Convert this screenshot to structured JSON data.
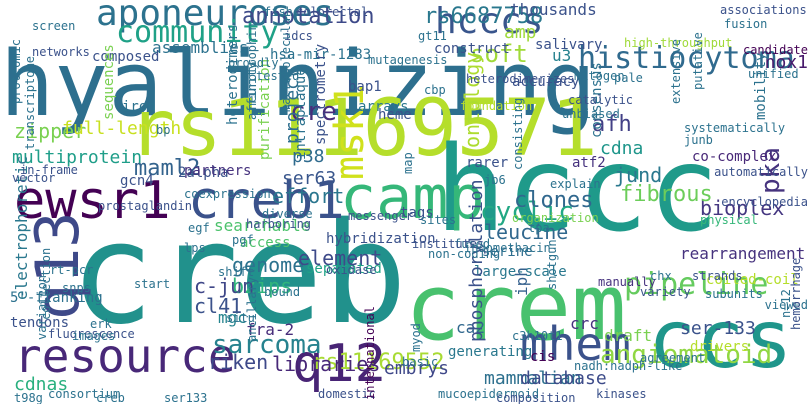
{
  "words": [
    {
      "text": "hyalinizing",
      "color": "#2d6f8e"
    },
    {
      "text": "creb",
      "color": "#21918c"
    },
    {
      "text": "rs11169571",
      "color": "#b5de2b"
    },
    {
      "text": "hccc",
      "color": "#1f9a8a"
    },
    {
      "text": "crem",
      "color": "#48c16e"
    },
    {
      "text": "ccs",
      "color": "#1f968b"
    },
    {
      "text": "camp",
      "color": "#35b779"
    },
    {
      "text": "ewsr1",
      "color": "#440154"
    },
    {
      "text": "creb1",
      "color": "#3b528b"
    },
    {
      "text": "resource",
      "color": "#482878"
    },
    {
      "text": "q13",
      "color": "#3e4989"
    },
    {
      "text": "q12",
      "color": "#482475"
    },
    {
      "text": "mhem",
      "color": "#3b528b"
    },
    {
      "text": "aponeuroses",
      "color": "#2c728e"
    },
    {
      "text": "community",
      "color": "#1fa187"
    },
    {
      "text": "hcccs",
      "color": "#39558c"
    },
    {
      "text": "histiocytoma",
      "color": "#306a8e"
    },
    {
      "text": "rs6687758",
      "color": "#2a788e"
    },
    {
      "text": "annotation",
      "color": "#3e4a89"
    },
    {
      "text": "soft",
      "color": "#a0da39"
    },
    {
      "text": "cre",
      "color": "#472d7b"
    },
    {
      "text": "pipeline",
      "color": "#65cb5e"
    },
    {
      "text": "cyclic",
      "color": "#22a884"
    },
    {
      "text": "leucine",
      "color": "#31688e"
    },
    {
      "text": "msk1",
      "color": "#d0e11c"
    },
    {
      "text": "sarcoma",
      "color": "#26828e"
    },
    {
      "text": "angiomatoid",
      "color": "#90d743"
    },
    {
      "text": "rs11169552",
      "color": "#a8db34"
    },
    {
      "text": "maml2",
      "color": "#33638d"
    },
    {
      "text": "multiprotein",
      "color": "#1f9e89"
    },
    {
      "text": "bioplex",
      "color": "#453781"
    },
    {
      "text": "pka",
      "color": "#46337e"
    },
    {
      "text": "afh",
      "color": "#424086"
    },
    {
      "text": "nox1",
      "color": "#481a6c"
    },
    {
      "text": "ontology",
      "color": "#addc30"
    },
    {
      "text": "zipper",
      "color": "#7ad151"
    },
    {
      "text": "full-length",
      "color": "#c8e020"
    },
    {
      "text": "p38",
      "color": "#2f6b8e"
    },
    {
      "text": "project",
      "color": "#2e6e8e"
    },
    {
      "text": "cdna",
      "color": "#1f968b"
    },
    {
      "text": "fibrous",
      "color": "#6ccd5a"
    },
    {
      "text": "jund",
      "color": "#2a788e"
    },
    {
      "text": "ser63",
      "color": "#39568c"
    },
    {
      "text": "effort",
      "color": "#2a768e"
    },
    {
      "text": "clones",
      "color": "#31688e"
    },
    {
      "text": "bzips",
      "color": "#2fb47c"
    },
    {
      "text": "c-jun",
      "color": "#3f4788"
    },
    {
      "text": "cl41",
      "color": "#3b528b"
    },
    {
      "text": "genome",
      "color": "#2c728e"
    },
    {
      "text": "element",
      "color": "#3e4a89"
    },
    {
      "text": "libraries",
      "color": "#482878"
    },
    {
      "text": "riken",
      "color": "#3e4989"
    },
    {
      "text": "cdnas",
      "color": "#2ab07f"
    },
    {
      "text": "embrys",
      "color": "#3f4889"
    },
    {
      "text": "mammalian",
      "color": "#2d708e"
    },
    {
      "text": "database",
      "color": "#3e4c8a"
    },
    {
      "text": "iph",
      "color": "#34608d"
    },
    {
      "text": "ca2",
      "color": "#31688e"
    },
    {
      "text": "crc",
      "color": "#46327e"
    },
    {
      "text": "ser-133",
      "color": "#3b528b"
    },
    {
      "text": "rearrangement",
      "color": "#46327e"
    },
    {
      "text": "serine",
      "color": "#2e6d8e"
    },
    {
      "text": "large-scale",
      "color": "#2a788e"
    },
    {
      "text": "searchable",
      "color": "#4cc26c"
    },
    {
      "text": "hybridization",
      "color": "#3b528b"
    },
    {
      "text": "separated",
      "color": "#20a386"
    },
    {
      "text": "access",
      "color": "#4ec36b"
    },
    {
      "text": "fra-2",
      "color": "#472c7a"
    },
    {
      "text": "mgc",
      "color": "#25848e"
    },
    {
      "text": "electrophoretic",
      "color": "#2a788e"
    },
    {
      "text": "5'-flanking",
      "color": "#2c718e"
    },
    {
      "text": "tendons",
      "color": "#3b528b"
    },
    {
      "text": "2alpha",
      "color": "#3b528b"
    },
    {
      "text": "thousands",
      "color": "#3b528b"
    },
    {
      "text": "amp",
      "color": "#9fda3a"
    },
    {
      "text": "salivary",
      "color": "#3b528b"
    },
    {
      "text": "assemblies",
      "color": "#2c728e"
    },
    {
      "text": "composed",
      "color": "#3b528b"
    },
    {
      "text": "construct",
      "color": "#3b528b"
    },
    {
      "text": "accuracy",
      "color": "#3b528b"
    },
    {
      "text": "u3",
      "color": "#26828e"
    },
    {
      "text": "consensus",
      "color": "#2c728e"
    },
    {
      "text": "mobility",
      "color": "#2c728e"
    },
    {
      "text": "partners",
      "color": "#46327e"
    },
    {
      "text": "gcn4",
      "color": "#3b528b"
    },
    {
      "text": "co-complex",
      "color": "#482878"
    },
    {
      "text": "tags",
      "color": "#3b528b"
    },
    {
      "text": "atf2",
      "color": "#46327e"
    },
    {
      "text": "bap1",
      "color": "#3b528b"
    },
    {
      "text": "heme",
      "color": "#3b528b"
    },
    {
      "text": "arrays",
      "color": "#2a788e"
    },
    {
      "text": "iron",
      "color": "#2c728e"
    },
    {
      "text": "hsa-mir-1283",
      "color": "#2c728e"
    },
    {
      "text": "pale",
      "color": "#2c728e"
    },
    {
      "text": "intraplaque",
      "color": "#2c728e"
    },
    {
      "text": "spectrometry",
      "color": "#3b528b"
    },
    {
      "text": "purification",
      "color": "#7ad151"
    },
    {
      "text": "heterodimers",
      "color": "#2c728e"
    },
    {
      "text": "high-throughput",
      "color": "#a0da39"
    },
    {
      "text": "draft",
      "color": "#7ad151"
    },
    {
      "text": "generating",
      "color": "#2a788e"
    },
    {
      "text": "cis",
      "color": "#440154"
    },
    {
      "text": "phosphorylation",
      "color": "#3b528b"
    },
    {
      "text": "rarer",
      "color": "#3b528b"
    },
    {
      "text": "tpa",
      "color": "#2c728e"
    },
    {
      "text": "jb6",
      "color": "#2c728e"
    },
    {
      "text": "coiled-coil",
      "color": "#b5de2b"
    },
    {
      "text": "strands",
      "color": "#3b528b"
    },
    {
      "text": "subunits",
      "color": "#2c728e"
    },
    {
      "text": "variety",
      "color": "#3b528b"
    },
    {
      "text": "drivers",
      "color": "#b5de2b"
    },
    {
      "text": "agreement",
      "color": "#2c728e"
    },
    {
      "text": "viewed",
      "color": "#2c728e"
    },
    {
      "text": "physical",
      "color": "#35b779"
    },
    {
      "text": "encyclopedia",
      "color": "#3b528b"
    },
    {
      "text": "prostaglandin",
      "color": "#3b528b"
    },
    {
      "text": "mucoepidermoid",
      "color": "#2c728e"
    },
    {
      "text": "domestic",
      "color": "#3b528b"
    },
    {
      "text": "consortium",
      "color": "#2c728e"
    },
    {
      "text": "international",
      "color": "#440154"
    },
    {
      "text": "kinases",
      "color": "#3b528b"
    },
    {
      "text": "basic",
      "color": "#2c728e"
    },
    {
      "text": "myod",
      "color": "#2c728e"
    },
    {
      "text": "fused",
      "color": "#2c728e"
    },
    {
      "text": "institutes",
      "color": "#3b528b"
    },
    {
      "text": "sequences",
      "color": "#7ad151"
    },
    {
      "text": "fluorescence",
      "color": "#3b528b"
    },
    {
      "text": "images",
      "color": "#2c728e"
    },
    {
      "text": "collection",
      "color": "#2c728e"
    },
    {
      "text": "variation",
      "color": "#2c728e"
    },
    {
      "text": "fish",
      "color": "#2c728e"
    },
    {
      "text": "screen",
      "color": "#2c728e"
    },
    {
      "text": "networks",
      "color": "#3b528b"
    },
    {
      "text": "broadly",
      "color": "#2c728e"
    },
    {
      "text": "associations",
      "color": "#3b528b"
    },
    {
      "text": "fusion",
      "color": "#2c728e"
    },
    {
      "text": "candidate",
      "color": "#440154"
    },
    {
      "text": "unified",
      "color": "#2c728e"
    },
    {
      "text": "colorectal",
      "color": "#3b528b"
    },
    {
      "text": "idcs",
      "color": "#3b528b"
    },
    {
      "text": "mutagenesis",
      "color": "#2c728e"
    },
    {
      "text": "gt11",
      "color": "#2c728e"
    },
    {
      "text": "tested",
      "color": "#2c728e"
    },
    {
      "text": "cbp",
      "color": "#2c728e"
    },
    {
      "text": "heterodimerizes",
      "color": "#3b528b"
    },
    {
      "text": "mitogen",
      "color": "#2c728e"
    },
    {
      "text": "catalytic",
      "color": "#3b528b"
    },
    {
      "text": "foundation",
      "color": "#b5de2b"
    },
    {
      "text": "unbiased",
      "color": "#2c728e"
    },
    {
      "text": "extensive",
      "color": "#2c728e"
    },
    {
      "text": "putative",
      "color": "#2c728e"
    },
    {
      "text": "neurotrophin",
      "color": "#2c728e"
    },
    {
      "text": "macromolecular",
      "color": "#2c728e"
    },
    {
      "text": "affinity",
      "color": "#2c728e"
    },
    {
      "text": "vector",
      "color": "#3b528b"
    },
    {
      "text": "in-frame",
      "color": "#3b528b"
    },
    {
      "text": "transcriptome",
      "color": "#2c728e"
    },
    {
      "text": "proteomic",
      "color": "#2c728e"
    },
    {
      "text": "coexpression",
      "color": "#2c728e"
    },
    {
      "text": "diverse",
      "color": "#2c728e"
    },
    {
      "text": "messenger",
      "color": "#3b528b"
    },
    {
      "text": "harboring",
      "color": "#3b528b"
    },
    {
      "text": "pgf",
      "color": "#2c728e"
    },
    {
      "text": "egf",
      "color": "#2c728e"
    },
    {
      "text": "lps",
      "color": "#2c728e"
    },
    {
      "text": "snps",
      "color": "#2c728e"
    },
    {
      "text": "rt-pcr",
      "color": "#2c728e"
    },
    {
      "text": "shift",
      "color": "#2c728e"
    },
    {
      "text": "oxidase",
      "color": "#3b528b"
    },
    {
      "text": "non-coding",
      "color": "#2c728e"
    },
    {
      "text": "sites",
      "color": "#2c728e"
    },
    {
      "text": "organization",
      "color": "#7ad151"
    },
    {
      "text": "explain",
      "color": "#2c728e"
    },
    {
      "text": "consisting",
      "color": "#2c728e"
    },
    {
      "text": "map",
      "color": "#2c728e"
    },
    {
      "text": "systematically",
      "color": "#2c728e"
    },
    {
      "text": "automatically",
      "color": "#3b528b"
    },
    {
      "text": "junb",
      "color": "#2c728e"
    },
    {
      "text": "chx",
      "color": "#2c728e"
    },
    {
      "text": "n=12",
      "color": "#2c728e"
    },
    {
      "text": "hemorrhage",
      "color": "#3b528b"
    },
    {
      "text": "shotgun",
      "color": "#2c728e"
    },
    {
      "text": "c3h10t1",
      "color": "#2c728e"
    },
    {
      "text": "ancillary",
      "color": "#2c728e"
    },
    {
      "text": "erk",
      "color": "#2c728e"
    },
    {
      "text": "situ",
      "color": "#2c728e"
    },
    {
      "text": "start",
      "color": "#2c728e"
    },
    {
      "text": "bound",
      "color": "#2c728e"
    },
    {
      "text": "t98g",
      "color": "#2c728e"
    },
    {
      "text": "creb",
      "color": "#2c728e"
    },
    {
      "text": "ser133",
      "color": "#2c728e"
    },
    {
      "text": "composition",
      "color": "#3b528b"
    },
    {
      "text": "nadh:nadph-like",
      "color": "#2c728e"
    },
    {
      "text": "indomethacin",
      "color": "#2c728e"
    },
    {
      "text": "manually",
      "color": "#46327e"
    },
    {
      "text": "bp",
      "color": "#2c728e"
    },
    {
      "text": "tandem",
      "color": "#2c728e"
    }
  ]
}
